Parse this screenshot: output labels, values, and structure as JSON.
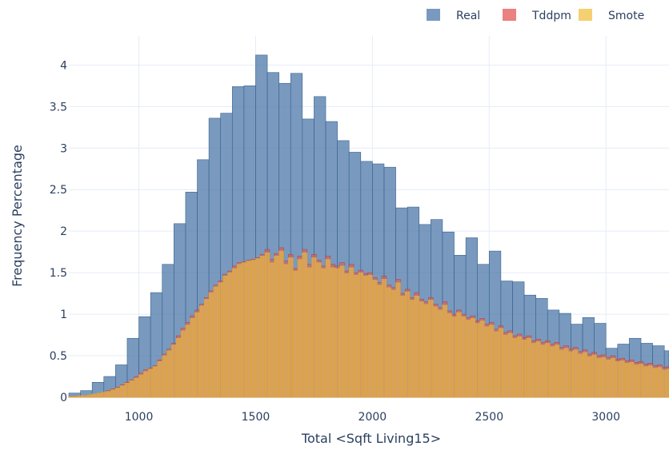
{
  "chart_data": {
    "type": "bar",
    "xlabel": "Total <Sqft Living15>",
    "ylabel": "Frequency Percentage",
    "xlim": [
      700,
      3270
    ],
    "ylim": [
      0,
      4.35
    ],
    "xticks": [
      1000,
      1500,
      2000,
      2500,
      3000
    ],
    "yticks": [
      0,
      0.5,
      1,
      1.5,
      2,
      2.5,
      3,
      3.5,
      4
    ],
    "grid": true,
    "legend_position": "top-right",
    "colors": {
      "Real": "#4c78a8",
      "Tddpm": "#e45756",
      "Smote": "#f0c040"
    },
    "real": {
      "bin_start": 700,
      "bin_width": 50,
      "values": [
        0.05,
        0.08,
        0.18,
        0.25,
        0.39,
        0.71,
        0.97,
        1.26,
        1.6,
        2.09,
        2.47,
        2.86,
        3.36,
        3.42,
        3.74,
        3.75,
        4.12,
        3.91,
        3.78,
        3.9,
        3.35,
        3.62,
        3.32,
        3.09,
        2.95,
        2.84,
        2.81,
        2.77,
        2.28,
        2.29,
        2.08,
        2.14,
        1.99,
        1.71,
        1.92,
        1.6,
        1.76,
        1.4,
        1.39,
        1.23,
        1.19,
        1.05,
        1.01,
        0.88,
        0.96,
        0.89,
        0.59,
        0.64,
        0.71,
        0.65,
        0.62,
        0.56
      ]
    },
    "tddpm": {
      "bin_start": 700,
      "bin_width": 20,
      "values": [
        0.01,
        0.01,
        0.02,
        0.02,
        0.03,
        0.04,
        0.05,
        0.06,
        0.08,
        0.1,
        0.12,
        0.15,
        0.18,
        0.21,
        0.25,
        0.29,
        0.33,
        0.35,
        0.38,
        0.45,
        0.52,
        0.58,
        0.65,
        0.74,
        0.83,
        0.9,
        0.98,
        1.05,
        1.12,
        1.2,
        1.28,
        1.35,
        1.4,
        1.48,
        1.52,
        1.58,
        1.62,
        1.63,
        1.65,
        1.66,
        1.68,
        1.72,
        1.78,
        1.66,
        1.73,
        1.8,
        1.64,
        1.72,
        1.55,
        1.7,
        1.78,
        1.6,
        1.72,
        1.65,
        1.58,
        1.7,
        1.6,
        1.58,
        1.62,
        1.52,
        1.6,
        1.5,
        1.53,
        1.49,
        1.5,
        1.44,
        1.38,
        1.46,
        1.35,
        1.32,
        1.42,
        1.25,
        1.3,
        1.2,
        1.26,
        1.18,
        1.15,
        1.2,
        1.12,
        1.08,
        1.15,
        1.04,
        1.0,
        1.05,
        1.0,
        0.96,
        0.98,
        0.92,
        0.95,
        0.88,
        0.9,
        0.82,
        0.86,
        0.78,
        0.8,
        0.74,
        0.76,
        0.72,
        0.74,
        0.68,
        0.7,
        0.66,
        0.68,
        0.64,
        0.66,
        0.6,
        0.62,
        0.58,
        0.6,
        0.55,
        0.57,
        0.52,
        0.54,
        0.5,
        0.51,
        0.48,
        0.5,
        0.46,
        0.47,
        0.44,
        0.45,
        0.42,
        0.43,
        0.4,
        0.41,
        0.38,
        0.39,
        0.36,
        0.37,
        0.35
      ]
    },
    "smote": {
      "bin_start": 700,
      "bin_width": 20,
      "values": [
        0.01,
        0.01,
        0.02,
        0.02,
        0.03,
        0.04,
        0.05,
        0.06,
        0.07,
        0.09,
        0.11,
        0.14,
        0.17,
        0.2,
        0.23,
        0.27,
        0.31,
        0.34,
        0.37,
        0.43,
        0.5,
        0.56,
        0.63,
        0.71,
        0.8,
        0.87,
        0.95,
        1.02,
        1.1,
        1.18,
        1.26,
        1.33,
        1.38,
        1.46,
        1.5,
        1.55,
        1.6,
        1.62,
        1.64,
        1.65,
        1.67,
        1.7,
        1.74,
        1.62,
        1.7,
        1.76,
        1.6,
        1.68,
        1.52,
        1.66,
        1.74,
        1.56,
        1.68,
        1.62,
        1.55,
        1.66,
        1.56,
        1.55,
        1.58,
        1.49,
        1.56,
        1.47,
        1.5,
        1.46,
        1.47,
        1.41,
        1.35,
        1.42,
        1.32,
        1.29,
        1.38,
        1.22,
        1.27,
        1.17,
        1.22,
        1.15,
        1.12,
        1.17,
        1.09,
        1.05,
        1.11,
        1.01,
        0.97,
        1.02,
        0.97,
        0.93,
        0.95,
        0.89,
        0.92,
        0.85,
        0.87,
        0.79,
        0.83,
        0.75,
        0.77,
        0.71,
        0.73,
        0.69,
        0.71,
        0.65,
        0.67,
        0.63,
        0.65,
        0.61,
        0.63,
        0.57,
        0.59,
        0.55,
        0.57,
        0.52,
        0.54,
        0.49,
        0.51,
        0.47,
        0.48,
        0.45,
        0.47,
        0.43,
        0.44,
        0.41,
        0.42,
        0.39,
        0.4,
        0.37,
        0.38,
        0.35,
        0.36,
        0.33,
        0.34,
        0.32
      ]
    },
    "legend": [
      {
        "name": "Real",
        "color": "#4c78a8"
      },
      {
        "name": "Tddpm",
        "color": "#e45756"
      },
      {
        "name": "Smote",
        "color": "#f0c040"
      }
    ]
  }
}
